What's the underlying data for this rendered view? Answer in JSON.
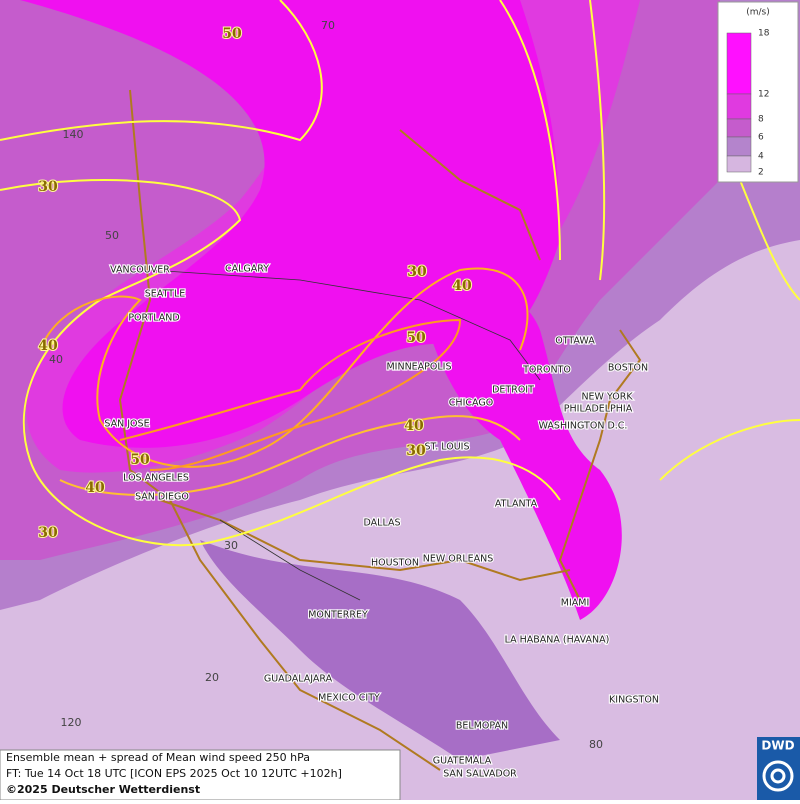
{
  "title": "Ensemble mean + spread of Mean wind speed 250 hPa",
  "forecast_time": "FT: Tue 14 Oct 18 UTC [ICON EPS 2025 Oct 10 12UTC +102h]",
  "copyright": "©2025 Deutscher Wetterdienst",
  "logo": "DWD",
  "legend": {
    "unit": "(m/s)",
    "levels": [
      18,
      12,
      8,
      6,
      4,
      2
    ],
    "colors": [
      "#ff10ff",
      "#e03ae0",
      "#c55ccc",
      "#b484cc",
      "#d6b6e0"
    ]
  },
  "cities": [
    "VANCOUVER",
    "CALGARY",
    "SEATTLE",
    "PORTLAND",
    "MINNEAPOLIS",
    "TORONTO",
    "OTTAWA",
    "BOSTON",
    "NEW YORK",
    "PHILADELPHIA",
    "DETROIT",
    "CHICAGO",
    "WASHINGTON D.C.",
    "ST. LOUIS",
    "SAN JOSE",
    "LOS ANGELES",
    "SAN DIEGO",
    "DALLAS",
    "ATLANTA",
    "HOUSTON",
    "NEW ORLEANS",
    "MIAMI",
    "MONTERREY",
    "LA HABANA (HAVANA)",
    "GUADALAJARA",
    "MEXICO CITY",
    "KINGSTON",
    "BELMOPAN",
    "GUATEMALA",
    "SAN SALVADOR"
  ],
  "contour_labels": [
    50,
    30,
    30,
    40,
    50,
    40,
    40,
    30,
    50,
    40,
    30
  ],
  "grid_labels": [
    70,
    140,
    50,
    40,
    30,
    20,
    120,
    80
  ]
}
